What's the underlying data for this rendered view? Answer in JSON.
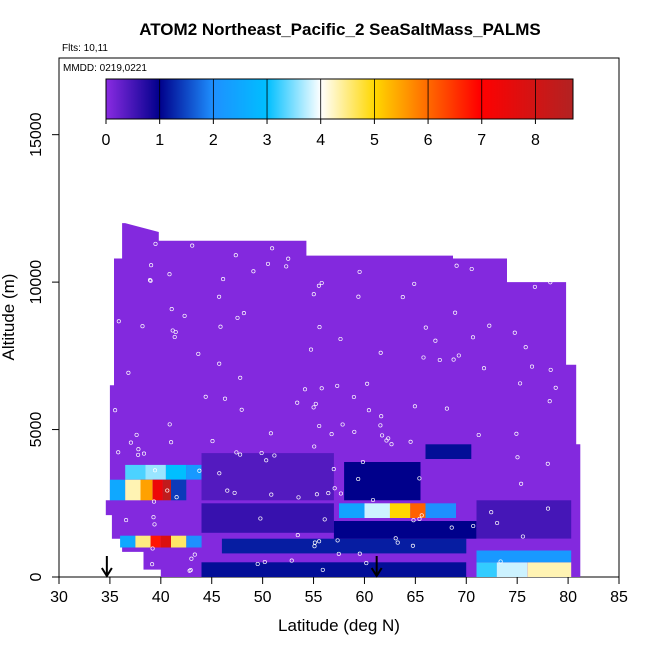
{
  "chart_data": {
    "type": "heatmap",
    "title": "ATOM2 Northeast_Pacific_2 SeaSaltMass_PALMS",
    "flights_label": "Flts: 10,11",
    "dates_label": "MMDD: 0219,0221",
    "xlabel": "Latitude (deg N)",
    "ylabel": "Altitude (m)",
    "xlim": [
      30,
      85
    ],
    "ylim": [
      0,
      17600
    ],
    "x_ticks": [
      30,
      35,
      40,
      45,
      50,
      55,
      60,
      65,
      70,
      75,
      80,
      85
    ],
    "y_ticks": [
      0,
      5000,
      10000,
      15000
    ],
    "colorbar": {
      "min": 0,
      "max": 8.7,
      "ticks": [
        0,
        1,
        2,
        3,
        4,
        5,
        6,
        7,
        8
      ],
      "colors": [
        "#8a2be2",
        "#00008b",
        "#1e90ff",
        "#00bfff",
        "#ffffff",
        "#ffd700",
        "#ff0000",
        "#b22222"
      ]
    },
    "background_value": 0.05,
    "cells": [
      {
        "lat": [
          36.5,
          38.5
        ],
        "alt": [
          3300,
          3800
        ],
        "v": 3.3
      },
      {
        "lat": [
          38.5,
          40.5
        ],
        "alt": [
          3300,
          3800
        ],
        "v": 3.6
      },
      {
        "lat": [
          40.5,
          42.5
        ],
        "alt": [
          3300,
          3800
        ],
        "v": 3.0
      },
      {
        "lat": [
          42.5,
          44.5
        ],
        "alt": [
          3300,
          3800
        ],
        "v": 2.2
      },
      {
        "lat": [
          35,
          36.5
        ],
        "alt": [
          2600,
          3300
        ],
        "v": 2.5
      },
      {
        "lat": [
          36.5,
          38
        ],
        "alt": [
          2600,
          3300
        ],
        "v": 4.3
      },
      {
        "lat": [
          38,
          39.2
        ],
        "alt": [
          2600,
          3300
        ],
        "v": 5.5
      },
      {
        "lat": [
          39.2,
          40.2
        ],
        "alt": [
          2600,
          3300
        ],
        "v": 7.4
      },
      {
        "lat": [
          40.2,
          41
        ],
        "alt": [
          2600,
          3300
        ],
        "v": 8.4
      },
      {
        "lat": [
          41,
          42.5
        ],
        "alt": [
          2600,
          3300
        ],
        "v": 1.4
      },
      {
        "lat": [
          36,
          37.5
        ],
        "alt": [
          1000,
          1400
        ],
        "v": 2.5
      },
      {
        "lat": [
          37.5,
          39
        ],
        "alt": [
          1000,
          1400
        ],
        "v": 4.5
      },
      {
        "lat": [
          39,
          40
        ],
        "alt": [
          1000,
          1400
        ],
        "v": 6.8
      },
      {
        "lat": [
          40,
          41
        ],
        "alt": [
          1000,
          1400
        ],
        "v": 7.8
      },
      {
        "lat": [
          41,
          42.5
        ],
        "alt": [
          1000,
          1400
        ],
        "v": 4.6
      },
      {
        "lat": [
          42.5,
          44
        ],
        "alt": [
          1000,
          1400
        ],
        "v": 2.0
      },
      {
        "lat": [
          57.5,
          60
        ],
        "alt": [
          2000,
          2500
        ],
        "v": 2.4
      },
      {
        "lat": [
          60,
          62.5
        ],
        "alt": [
          2000,
          2500
        ],
        "v": 3.8
      },
      {
        "lat": [
          62.5,
          64.5
        ],
        "alt": [
          2000,
          2500
        ],
        "v": 5.0
      },
      {
        "lat": [
          64.5,
          66
        ],
        "alt": [
          2000,
          2500
        ],
        "v": 6.1
      },
      {
        "lat": [
          66,
          69
        ],
        "alt": [
          2000,
          2500
        ],
        "v": 2.0
      },
      {
        "lat": [
          58,
          65.5
        ],
        "alt": [
          2600,
          3900
        ],
        "v": 1.0
      },
      {
        "lat": [
          66,
          70.5
        ],
        "alt": [
          4000,
          4500
        ],
        "v": 1.1
      },
      {
        "lat": [
          71,
          73
        ],
        "alt": [
          0,
          500
        ],
        "v": 3.2
      },
      {
        "lat": [
          73,
          76
        ],
        "alt": [
          0,
          500
        ],
        "v": 3.8
      },
      {
        "lat": [
          76,
          80.3
        ],
        "alt": [
          0,
          500
        ],
        "v": 4.3
      },
      {
        "lat": [
          71,
          80.3
        ],
        "alt": [
          500,
          900
        ],
        "v": 2.2
      },
      {
        "lat": [
          44,
          70
        ],
        "alt": [
          0,
          500
        ],
        "v": 1.1
      },
      {
        "lat": [
          46,
          70
        ],
        "alt": [
          800,
          1300
        ],
        "v": 1.2
      },
      {
        "lat": [
          44,
          57
        ],
        "alt": [
          1500,
          2500
        ],
        "v": 0.6
      },
      {
        "lat": [
          57,
          71
        ],
        "alt": [
          1300,
          1900
        ],
        "v": 1.0
      },
      {
        "lat": [
          44,
          57
        ],
        "alt": [
          2600,
          4200
        ],
        "v": 0.4
      },
      {
        "lat": [
          71,
          80.3
        ],
        "alt": [
          1300,
          2600
        ],
        "v": 0.5
      }
    ],
    "markers": [
      {
        "lat": 34.7,
        "label": "arrow"
      },
      {
        "lat": 61.2,
        "label": "arrow"
      }
    ],
    "grid": false
  }
}
